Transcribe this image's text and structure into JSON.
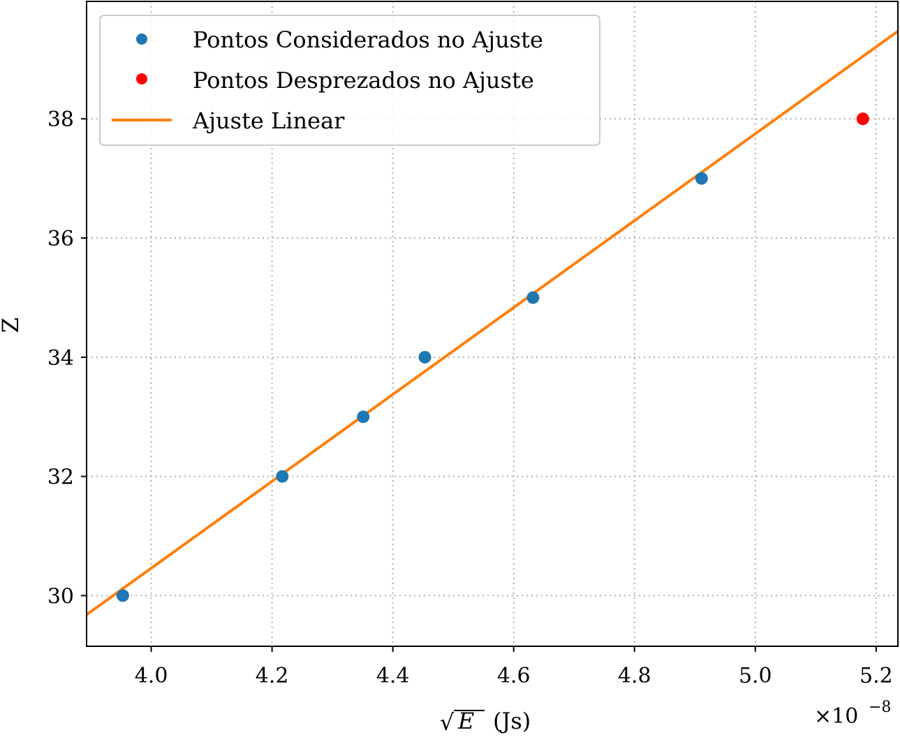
{
  "chart_data": {
    "type": "scatter",
    "title": "",
    "xlabel_base": "E",
    "xlabel_unit": "(Js)",
    "xlabel_root": "√",
    "ylabel": "Z",
    "x_offset_label": "×10",
    "x_offset_exponent": "−8",
    "xlim": [
      3.893,
      5.236
    ],
    "ylim": [
      29.15,
      39.97
    ],
    "xticks": [
      "4.0",
      "4.2",
      "4.4",
      "4.6",
      "4.8",
      "5.0",
      "5.2"
    ],
    "xtick_values": [
      4.0,
      4.2,
      4.4,
      4.6,
      4.8,
      5.0,
      5.2
    ],
    "yticks": [
      "30",
      "32",
      "34",
      "36",
      "38"
    ],
    "ytick_values": [
      30,
      32,
      34,
      36,
      38
    ],
    "grid": true,
    "legend_position": "upper-left",
    "series": [
      {
        "name": "Pontos Considerados no Ajuste",
        "kind": "points",
        "color": "#1f77b4",
        "points": [
          {
            "x": 3.953,
            "y": 30
          },
          {
            "x": 4.217,
            "y": 32
          },
          {
            "x": 4.351,
            "y": 33
          },
          {
            "x": 4.453,
            "y": 34
          },
          {
            "x": 4.632,
            "y": 35
          },
          {
            "x": 4.911,
            "y": 37
          }
        ]
      },
      {
        "name": "Pontos Desprezados no Ajuste",
        "kind": "points",
        "color": "#ff0000",
        "points": [
          {
            "x": 5.178,
            "y": 38
          }
        ]
      },
      {
        "name": "Ajuste Linear",
        "kind": "line",
        "color": "#ff7f0e",
        "points": [
          {
            "x": 3.893,
            "y": 29.68
          },
          {
            "x": 5.236,
            "y": 39.47
          }
        ]
      }
    ]
  }
}
